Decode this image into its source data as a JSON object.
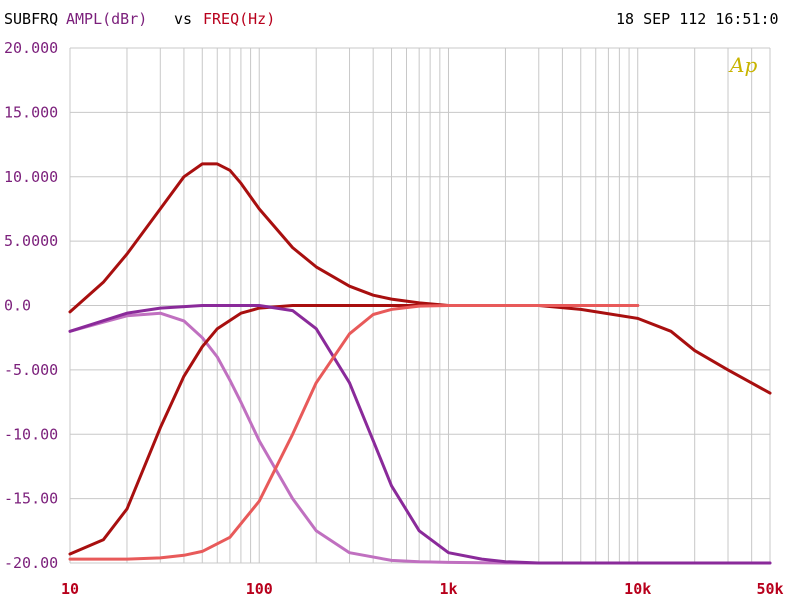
{
  "header": {
    "subfrq": "SUBFRQ",
    "ampl": "AMPL(dBr)",
    "vs": "vs",
    "freq": "FREQ(Hz)",
    "timestamp": "18 SEP 112 16:51:0"
  },
  "logo_text": "Ap",
  "colors": {
    "ytick": "#7b1f7b",
    "xtick": "#b8001c",
    "grid": "#c8c8c8",
    "dark_red": "#a80f0f",
    "light_red": "#e85a5a",
    "purple": "#8a2a9a",
    "orchid": "#c070c0"
  },
  "chart_data": {
    "type": "line",
    "xscale": "log",
    "xlim": [
      10,
      50000
    ],
    "ylim": [
      -20,
      20
    ],
    "grid": true,
    "y_tick_labels": [
      "20.000",
      "15.000",
      "10.000",
      "5.0000",
      "0.0",
      "-5.000",
      "-10.00",
      "-15.00",
      "-20.00"
    ],
    "y_tick_values": [
      20,
      15,
      10,
      5,
      0,
      -5,
      -10,
      -15,
      -20
    ],
    "x_tick_labels": [
      "10",
      "100",
      "1k",
      "10k",
      "50k"
    ],
    "x_tick_values": [
      10,
      100,
      1000,
      10000,
      50000
    ],
    "series": [
      {
        "color": "#a80f0f",
        "x": [
          10,
          15,
          20,
          30,
          40,
          50,
          60,
          70,
          80,
          100,
          150,
          200,
          300,
          400,
          500,
          700,
          1000,
          2000,
          3000,
          5000,
          10000,
          15000,
          20000,
          30000,
          50000
        ],
        "y": [
          -0.5,
          1.8,
          4,
          7.5,
          10,
          11,
          11,
          10.5,
          9.5,
          7.5,
          4.5,
          3,
          1.5,
          0.8,
          0.5,
          0.2,
          0,
          0,
          0,
          -0.3,
          -1,
          -2,
          -3.5,
          -5,
          -6.8
        ]
      },
      {
        "color": "#c070c0",
        "x": [
          10,
          15,
          20,
          30,
          40,
          50,
          60,
          70,
          80,
          100,
          150,
          200,
          300,
          500,
          700,
          1000,
          2000,
          5000,
          10000,
          50000
        ],
        "y": [
          -2,
          -1.3,
          -0.8,
          -0.6,
          -1.2,
          -2.5,
          -4,
          -5.8,
          -7.5,
          -10.5,
          -15,
          -17.5,
          -19.2,
          -19.8,
          -19.9,
          -19.95,
          -20,
          -20,
          -20,
          -20
        ]
      },
      {
        "color": "#a80f0f",
        "x": [
          10,
          15,
          20,
          30,
          40,
          50,
          60,
          80,
          100,
          150,
          200,
          300,
          500,
          1000,
          10000
        ],
        "y": [
          -19.3,
          -18.2,
          -15.8,
          -9.5,
          -5.5,
          -3.2,
          -1.8,
          -0.6,
          -0.2,
          0,
          0,
          0,
          0,
          0,
          0
        ]
      },
      {
        "color": "#8a2a9a",
        "x": [
          10,
          20,
          30,
          50,
          80,
          100,
          150,
          200,
          300,
          400,
          500,
          700,
          1000,
          1500,
          2000,
          3000,
          5000,
          10000,
          50000
        ],
        "y": [
          -2,
          -0.6,
          -0.2,
          0,
          0,
          0,
          -0.4,
          -1.8,
          -6,
          -10.5,
          -14,
          -17.5,
          -19.2,
          -19.7,
          -19.9,
          -20,
          -20,
          -20,
          -20
        ]
      },
      {
        "color": "#e85a5a",
        "x": [
          10,
          20,
          30,
          40,
          50,
          70,
          100,
          150,
          200,
          300,
          400,
          500,
          700,
          1000,
          2000,
          5000,
          10000
        ],
        "y": [
          -19.7,
          -19.7,
          -19.6,
          -19.4,
          -19.1,
          -18,
          -15.2,
          -10,
          -6,
          -2.2,
          -0.7,
          -0.3,
          -0.05,
          0,
          0,
          0,
          0
        ]
      }
    ]
  }
}
